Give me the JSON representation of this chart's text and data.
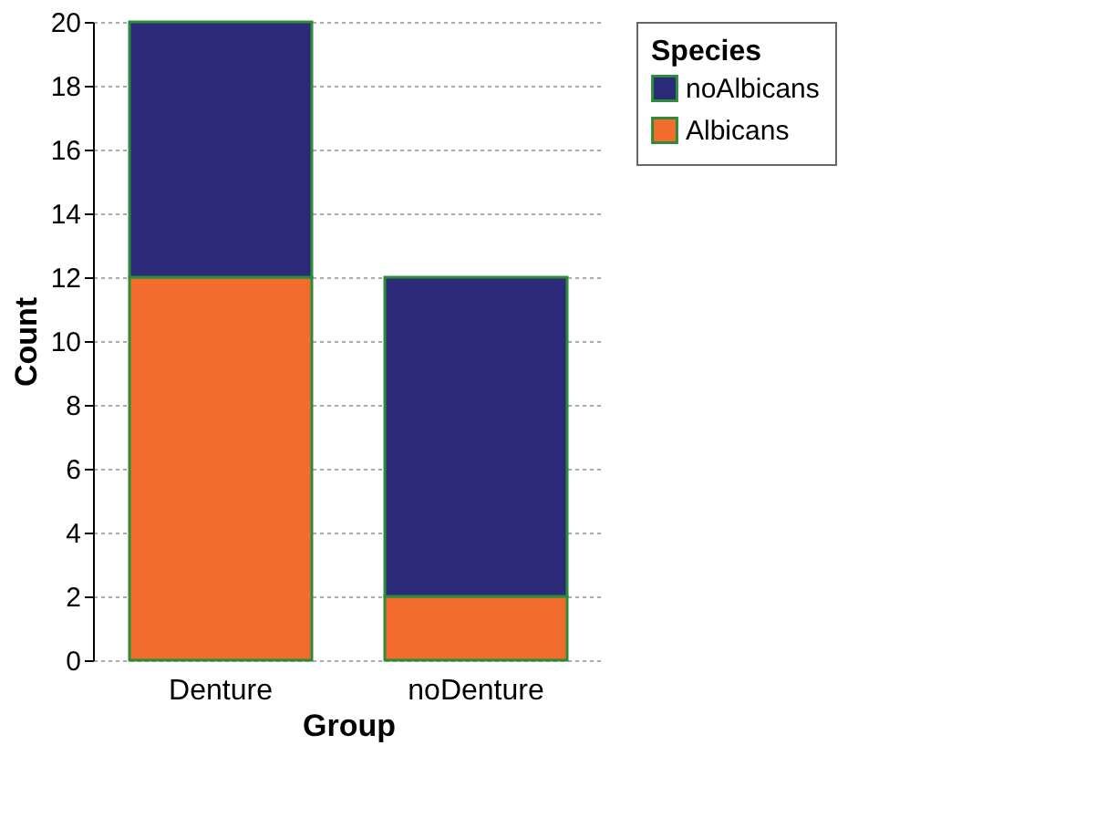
{
  "chart_data": {
    "type": "bar",
    "stacked": true,
    "xlabel": "Group",
    "ylabel": "Count",
    "legend_title": "Species",
    "categories": [
      "Denture",
      "noDenture"
    ],
    "series": [
      {
        "name": "Albicans",
        "color": "#f26d2d",
        "values": [
          12,
          2
        ]
      },
      {
        "name": "noAlbicans",
        "color": "#2b2a78",
        "values": [
          8,
          10
        ]
      }
    ],
    "ylim": [
      0,
      20
    ],
    "yticks": [
      0,
      2,
      4,
      6,
      8,
      10,
      12,
      14,
      16,
      18,
      20
    ],
    "grid": "y",
    "legend": "right"
  }
}
